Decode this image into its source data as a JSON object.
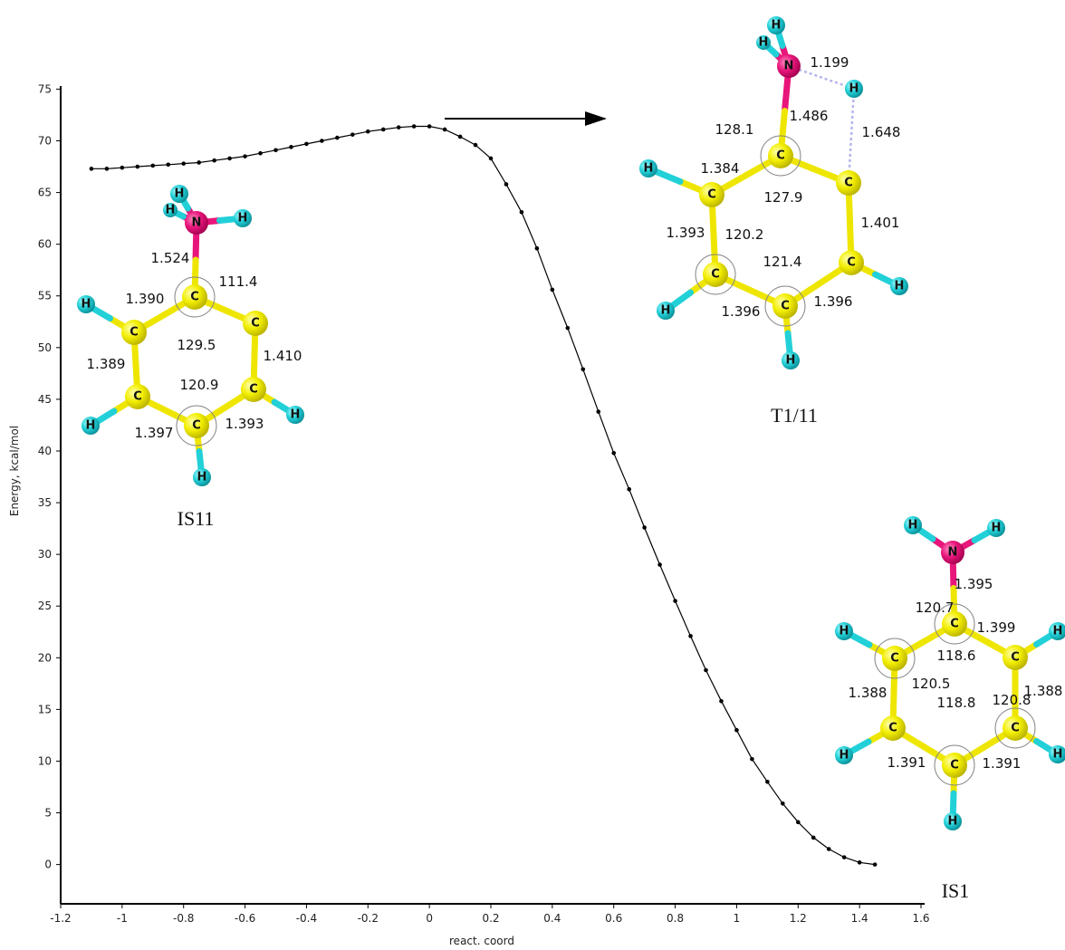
{
  "chart_data": {
    "type": "line",
    "x_label": "react. coord",
    "y_label": "Energy, kcal/mol",
    "x": [
      -1.1,
      -1.05,
      -1.0,
      -0.95,
      -0.9,
      -0.85,
      -0.8,
      -0.75,
      -0.7,
      -0.65,
      -0.6,
      -0.55,
      -0.5,
      -0.45,
      -0.4,
      -0.35,
      -0.3,
      -0.25,
      -0.2,
      -0.15,
      -0.1,
      -0.05,
      0,
      0.05,
      0.1,
      0.15,
      0.2,
      0.25,
      0.3,
      0.35,
      0.4,
      0.45,
      0.5,
      0.55,
      0.6,
      0.65,
      0.7,
      0.75,
      0.8,
      0.85,
      0.9,
      0.95,
      1.0,
      1.05,
      1.1,
      1.15,
      1.2,
      1.25,
      1.3,
      1.35,
      1.4,
      1.45
    ],
    "values": [
      67.3,
      67.3,
      67.4,
      67.5,
      67.6,
      67.7,
      67.8,
      67.9,
      68.1,
      68.3,
      68.5,
      68.8,
      69.1,
      69.4,
      69.7,
      70.0,
      70.3,
      70.6,
      70.9,
      71.1,
      71.3,
      71.4,
      71.4,
      71.1,
      70.4,
      69.6,
      68.3,
      65.8,
      63.1,
      59.6,
      55.6,
      51.9,
      47.9,
      43.8,
      39.8,
      36.3,
      32.6,
      29.0,
      25.5,
      22.1,
      18.8,
      15.8,
      13.0,
      10.2,
      8.0,
      5.9,
      4.1,
      2.6,
      1.5,
      0.7,
      0.2,
      0
    ],
    "color": "#000000",
    "xlim": [
      -1.2,
      1.6
    ],
    "ylim": [
      -3.8,
      75.3
    ],
    "xticks": [
      -1.2,
      -1,
      -0.8,
      -0.6,
      -0.4,
      -0.2,
      0,
      0.2,
      0.4,
      0.6,
      0.8,
      1,
      1.2,
      1.4,
      1.6
    ],
    "yticks": [
      0,
      5,
      10,
      15,
      20,
      25,
      30,
      35,
      40,
      45,
      50,
      55,
      60,
      65,
      70,
      75
    ]
  },
  "molecules": [
    {
      "name": "IS11",
      "atoms": [
        "N",
        "H",
        "H",
        "H",
        "C",
        "C",
        "C",
        "C",
        "C",
        "C",
        "H",
        "H",
        "H",
        "H"
      ],
      "labels": [
        "1.524",
        "111.4",
        "1.390",
        "129.5",
        "1.389",
        "1.410",
        "120.9",
        "1.397",
        "1.393"
      ]
    },
    {
      "name": "T1/11",
      "atoms": [
        "N",
        "H",
        "H",
        "H",
        "C",
        "C",
        "C",
        "C",
        "C",
        "C",
        "H",
        "H",
        "H",
        "H"
      ],
      "labels": [
        "1.199",
        "1.486",
        "1.648",
        "128.1",
        "1.384",
        "127.9",
        "1.401",
        "1.393",
        "120.2",
        "121.4",
        "1.396",
        "1.396"
      ]
    },
    {
      "name": "IS1",
      "atoms": [
        "N",
        "H",
        "H",
        "C",
        "C",
        "C",
        "C",
        "C",
        "C",
        "H",
        "H",
        "H",
        "H",
        "H"
      ],
      "labels": [
        "1.395",
        "120.7",
        "1.399",
        "118.6",
        "120.5",
        "1.388",
        "120.8",
        "1.388",
        "118.8",
        "1.391",
        "1.391"
      ]
    }
  ]
}
